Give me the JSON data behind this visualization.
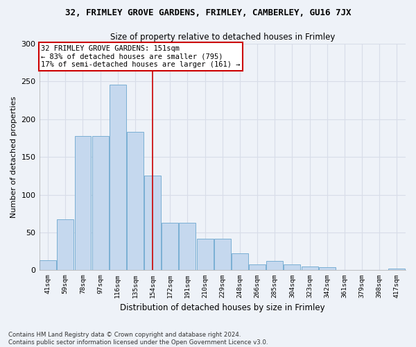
{
  "title_main": "32, FRIMLEY GROVE GARDENS, FRIMLEY, CAMBERLEY, GU16 7JX",
  "title_sub": "Size of property relative to detached houses in Frimley",
  "xlabel": "Distribution of detached houses by size in Frimley",
  "ylabel": "Number of detached properties",
  "categories": [
    "41sqm",
    "59sqm",
    "78sqm",
    "97sqm",
    "116sqm",
    "135sqm",
    "154sqm",
    "172sqm",
    "191sqm",
    "210sqm",
    "229sqm",
    "248sqm",
    "266sqm",
    "285sqm",
    "304sqm",
    "323sqm",
    "342sqm",
    "361sqm",
    "379sqm",
    "398sqm",
    "417sqm"
  ],
  "values": [
    13,
    67,
    178,
    178,
    246,
    183,
    125,
    63,
    63,
    42,
    42,
    22,
    8,
    12,
    8,
    5,
    4,
    0,
    0,
    0,
    2
  ],
  "bar_color": "#c5d8ee",
  "bar_edge_color": "#7aafd4",
  "vline_x": 6.0,
  "vline_color": "#cc0000",
  "annotation_text": "32 FRIMLEY GROVE GARDENS: 151sqm\n← 83% of detached houses are smaller (795)\n17% of semi-detached houses are larger (161) →",
  "annotation_box_color": "#ffffff",
  "annotation_box_edge": "#cc0000",
  "ylim": [
    0,
    300
  ],
  "yticks": [
    0,
    50,
    100,
    150,
    200,
    250,
    300
  ],
  "footnote": "Contains HM Land Registry data © Crown copyright and database right 2024.\nContains public sector information licensed under the Open Government Licence v3.0.",
  "background_color": "#eef2f8",
  "grid_color": "#d8dde8"
}
